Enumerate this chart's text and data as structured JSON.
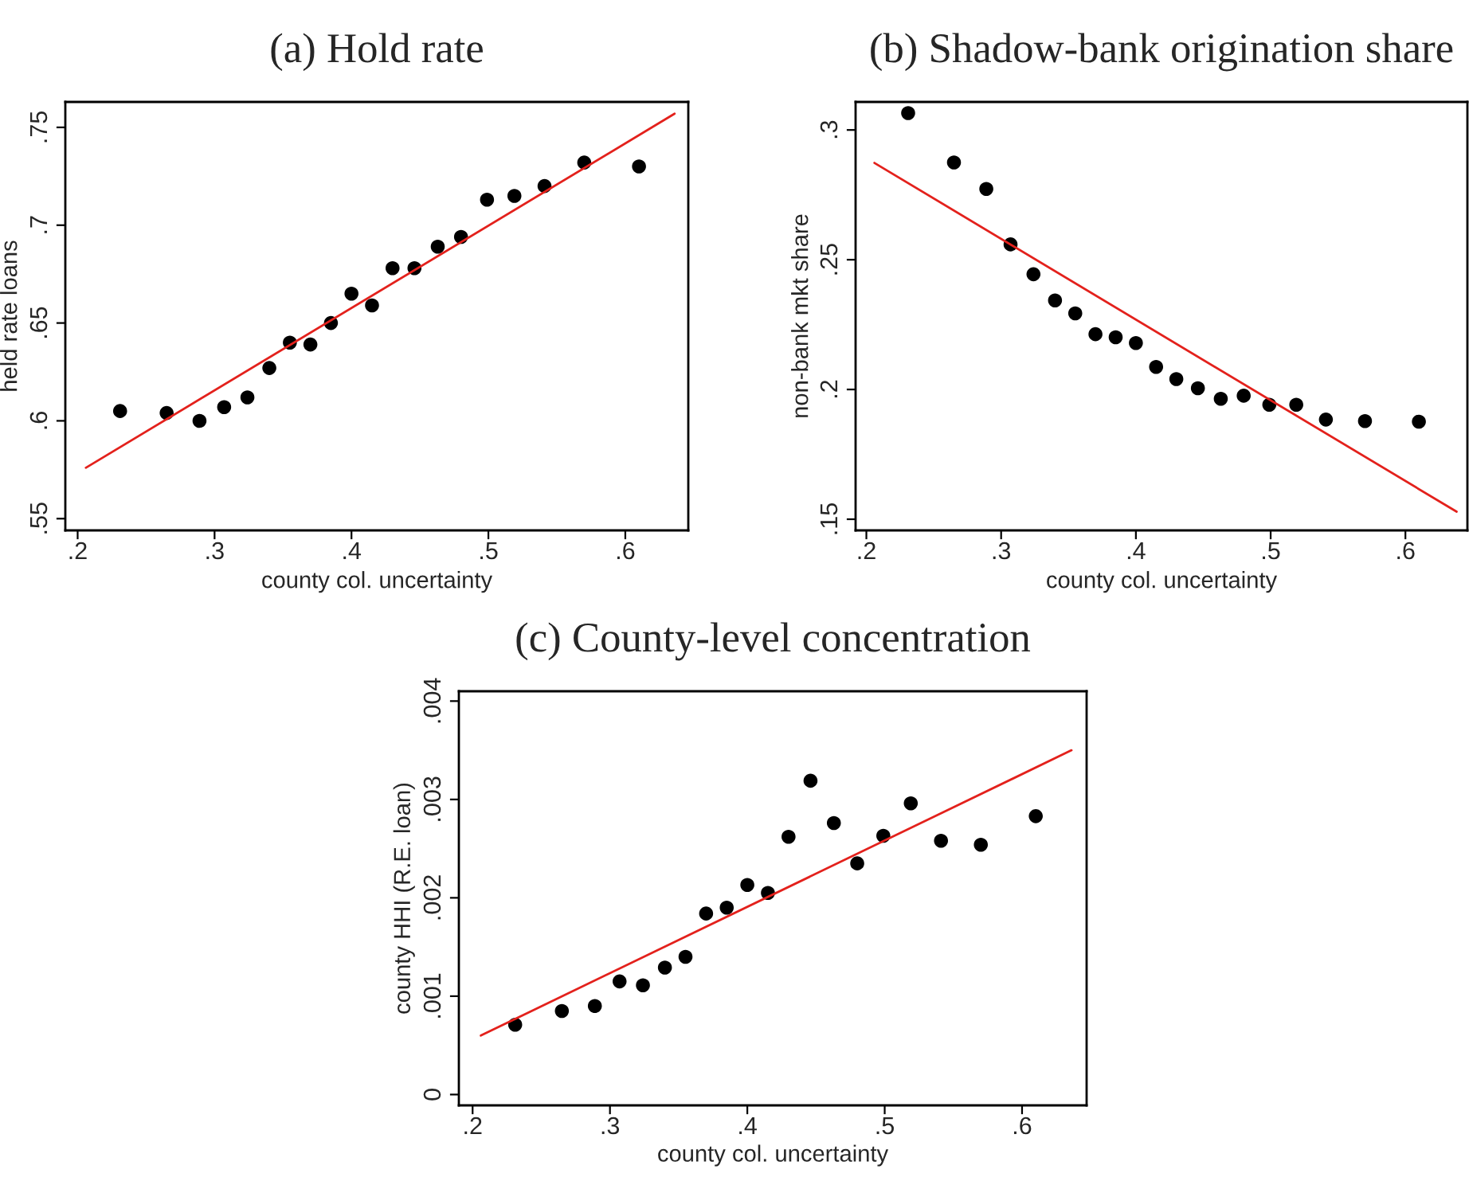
{
  "chart_data": [
    {
      "type": "scatter",
      "title": "(a) Hold rate",
      "xlabel": "county col. uncertainty",
      "ylabel": "held rate loans",
      "xlim": [
        0.191,
        0.646
      ],
      "ylim": [
        0.544,
        0.763
      ],
      "xticks": [
        {
          "value": 0.2,
          "label": ".2"
        },
        {
          "value": 0.3,
          "label": ".3"
        },
        {
          "value": 0.4,
          "label": ".4"
        },
        {
          "value": 0.5,
          "label": ".5"
        },
        {
          "value": 0.6,
          "label": ".6"
        }
      ],
      "yticks": [
        {
          "value": 0.55,
          "label": ".55"
        },
        {
          "value": 0.6,
          "label": ".6"
        },
        {
          "value": 0.65,
          "label": ".65"
        },
        {
          "value": 0.7,
          "label": ".7"
        },
        {
          "value": 0.75,
          "label": ".75"
        }
      ],
      "grid": false,
      "legend": false,
      "marker": "circle",
      "series": [
        {
          "color": "#000000",
          "x": [
            0.231,
            0.265,
            0.289,
            0.307,
            0.324,
            0.34,
            0.355,
            0.37,
            0.385,
            0.4,
            0.415,
            0.43,
            0.446,
            0.463,
            0.48,
            0.499,
            0.519,
            0.541,
            0.57,
            0.61
          ],
          "values": [
            0.605,
            0.604,
            0.6,
            0.607,
            0.612,
            0.627,
            0.64,
            0.639,
            0.65,
            0.665,
            0.659,
            0.678,
            0.678,
            0.689,
            0.694,
            0.713,
            0.715,
            0.72,
            0.732,
            0.73
          ]
        },
        {
          "type": "line",
          "color": "#e3211c",
          "marker": "none",
          "x": [
            0.206,
            0.636
          ],
          "values": [
            0.576,
            0.757
          ]
        }
      ]
    },
    {
      "type": "scatter",
      "title": "(b) Shadow-bank origination share",
      "xlabel": "county col. uncertainty",
      "ylabel": "non-bank mkt share",
      "xlim": [
        0.192,
        0.646
      ],
      "ylim": [
        0.1457,
        0.3108
      ],
      "xticks": [
        {
          "value": 0.2,
          "label": ".2"
        },
        {
          "value": 0.3,
          "label": ".3"
        },
        {
          "value": 0.4,
          "label": ".4"
        },
        {
          "value": 0.5,
          "label": ".5"
        },
        {
          "value": 0.6,
          "label": ".6"
        }
      ],
      "yticks": [
        {
          "value": 0.15,
          "label": ".15"
        },
        {
          "value": 0.2,
          "label": ".2"
        },
        {
          "value": 0.25,
          "label": ".25"
        },
        {
          "value": 0.3,
          "label": ".3"
        }
      ],
      "grid": false,
      "legend": false,
      "marker": "circle",
      "series": [
        {
          "color": "#000000",
          "x": [
            0.231,
            0.265,
            0.289,
            0.307,
            0.324,
            0.34,
            0.355,
            0.37,
            0.385,
            0.4,
            0.415,
            0.43,
            0.446,
            0.463,
            0.48,
            0.499,
            0.519,
            0.541,
            0.57,
            0.61
          ],
          "values": [
            0.3065,
            0.2875,
            0.2773,
            0.2559,
            0.2444,
            0.2343,
            0.2293,
            0.2213,
            0.2201,
            0.2179,
            0.2087,
            0.204,
            0.2005,
            0.1964,
            0.1976,
            0.1941,
            0.1941,
            0.1884,
            0.1878,
            0.1876
          ]
        },
        {
          "type": "line",
          "color": "#e3211c",
          "marker": "none",
          "x": [
            0.206,
            0.638
          ],
          "values": [
            0.2873,
            0.1529
          ]
        }
      ]
    },
    {
      "type": "scatter",
      "title": "(c) County-level concentration",
      "xlabel": "county col. uncertainty",
      "ylabel": "county HHI (R.E. loan)",
      "xlim": [
        0.19,
        0.647
      ],
      "ylim": [
        -0.00011,
        0.0041
      ],
      "xticks": [
        {
          "value": 0.2,
          "label": ".2"
        },
        {
          "value": 0.3,
          "label": ".3"
        },
        {
          "value": 0.4,
          "label": ".4"
        },
        {
          "value": 0.5,
          "label": ".5"
        },
        {
          "value": 0.6,
          "label": ".6"
        }
      ],
      "yticks": [
        0,
        {
          "value": 0.001,
          "label": ".001"
        },
        {
          "value": 0.002,
          "label": ".002"
        },
        {
          "value": 0.003,
          "label": ".003"
        },
        {
          "value": 0.004,
          "label": ".004"
        }
      ],
      "grid": false,
      "legend": false,
      "marker": "circle",
      "series": [
        {
          "color": "#000000",
          "x": [
            0.231,
            0.265,
            0.289,
            0.307,
            0.324,
            0.34,
            0.355,
            0.37,
            0.385,
            0.4,
            0.415,
            0.43,
            0.446,
            0.463,
            0.48,
            0.499,
            0.519,
            0.541,
            0.57,
            0.61
          ],
          "values": [
            0.00071,
            0.00085,
            0.0009,
            0.00115,
            0.00111,
            0.00129,
            0.0014,
            0.00184,
            0.0019,
            0.00213,
            0.00205,
            0.00262,
            0.00319,
            0.00276,
            0.00235,
            0.00263,
            0.00296,
            0.00258,
            0.00254,
            0.00283
          ]
        },
        {
          "type": "line",
          "color": "#e3211c",
          "marker": "none",
          "x": [
            0.206,
            0.636
          ],
          "values": [
            0.0006,
            0.0035
          ]
        }
      ]
    }
  ]
}
